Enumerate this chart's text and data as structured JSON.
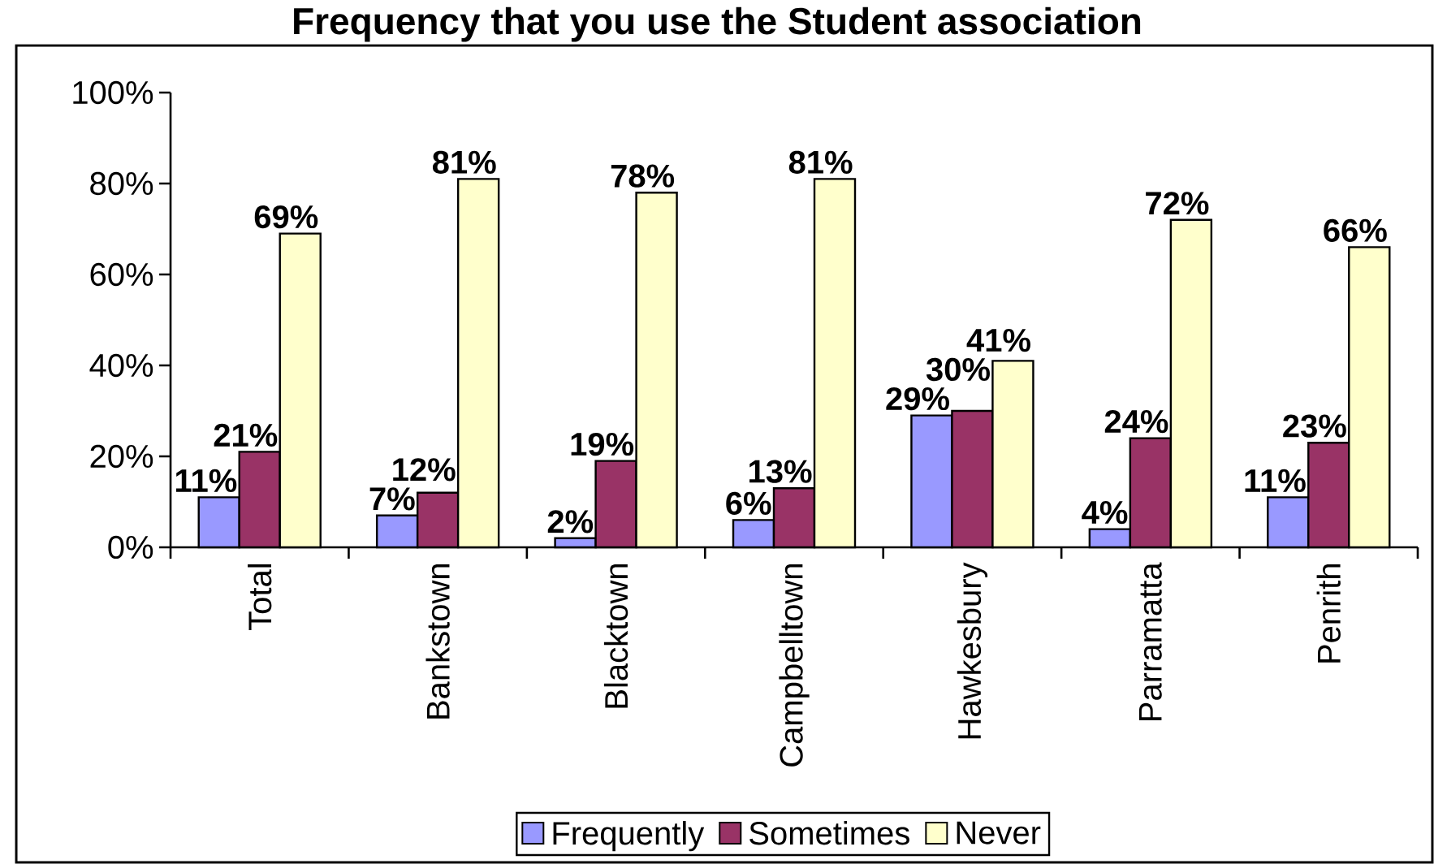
{
  "chart_data": {
    "type": "bar",
    "title": "Frequency that you use the Student association",
    "categories": [
      "Total",
      "Bankstown",
      "Blacktown",
      "Campbelltown",
      "Hawkesbury",
      "Parramatta",
      "Penrith"
    ],
    "series": [
      {
        "name": "Frequently",
        "color": "#9999ff",
        "values": [
          11,
          7,
          2,
          6,
          29,
          4,
          11
        ],
        "value_labels": [
          "11%",
          "7%",
          "2%",
          "6%",
          "29%",
          "4%",
          "11%"
        ]
      },
      {
        "name": "Sometimes",
        "color": "#993366",
        "values": [
          21,
          12,
          19,
          13,
          30,
          24,
          23
        ],
        "value_labels": [
          "21%",
          "12%",
          "19%",
          "13%",
          "30%",
          "24%",
          "23%"
        ]
      },
      {
        "name": "Never",
        "color": "#ffffcc",
        "values": [
          69,
          81,
          78,
          81,
          41,
          72,
          66
        ],
        "value_labels": [
          "69%",
          "81%",
          "78%",
          "81%",
          "41%",
          "72%",
          "66%"
        ]
      }
    ],
    "ylim": [
      0,
      100
    ],
    "yticks": [
      {
        "value": 0,
        "label": "0%"
      },
      {
        "value": 20,
        "label": "20%"
      },
      {
        "value": 40,
        "label": "40%"
      },
      {
        "value": 60,
        "label": "60%"
      },
      {
        "value": 80,
        "label": "80%"
      },
      {
        "value": 100,
        "label": "100%"
      }
    ],
    "legend": "bottom"
  }
}
